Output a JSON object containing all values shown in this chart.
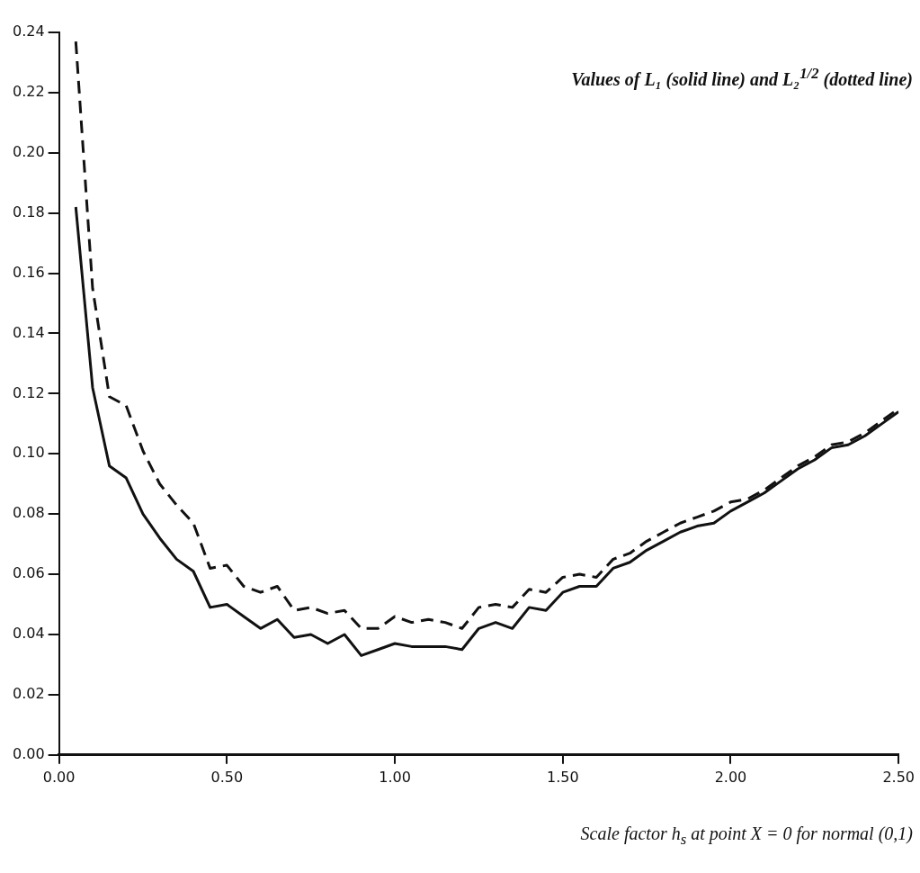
{
  "chart_data": {
    "type": "line",
    "title": "Values of L₁ (solid line) and L₂$^{1/2}$ (dotted line)",
    "xlabel": "Scale factor  h$_{s}$  at point X = 0 for normal (0,1)",
    "x": [
      0.05,
      0.1,
      0.15,
      0.2,
      0.25,
      0.3,
      0.35,
      0.4,
      0.45,
      0.5,
      0.55,
      0.6,
      0.65,
      0.7,
      0.75,
      0.8,
      0.85,
      0.9,
      0.95,
      1.0,
      1.05,
      1.1,
      1.15,
      1.2,
      1.25,
      1.3,
      1.35,
      1.4,
      1.45,
      1.5,
      1.55,
      1.6,
      1.65,
      1.7,
      1.75,
      1.8,
      1.85,
      1.9,
      1.95,
      2.0,
      2.05,
      2.1,
      2.15,
      2.2,
      2.25,
      2.3,
      2.35,
      2.4,
      2.45,
      2.5
    ],
    "series": [
      {
        "color": "#111111",
        "line_style": "solid",
        "values": [
          0.182,
          0.122,
          0.096,
          0.092,
          0.08,
          0.072,
          0.065,
          0.061,
          0.049,
          0.05,
          0.046,
          0.042,
          0.045,
          0.039,
          0.04,
          0.037,
          0.04,
          0.033,
          0.035,
          0.037,
          0.036,
          0.036,
          0.036,
          0.035,
          0.042,
          0.044,
          0.042,
          0.049,
          0.048,
          0.054,
          0.056,
          0.056,
          0.062,
          0.064,
          0.068,
          0.071,
          0.074,
          0.076,
          0.077,
          0.081,
          0.084,
          0.087,
          0.091,
          0.095,
          0.098,
          0.102,
          0.103,
          0.106,
          0.11,
          0.114
        ]
      },
      {
        "color": "#111111",
        "line_style": "dashed",
        "values": [
          0.237,
          0.155,
          0.119,
          0.116,
          0.101,
          0.09,
          0.083,
          0.077,
          0.062,
          0.063,
          0.056,
          0.054,
          0.056,
          0.048,
          0.049,
          0.047,
          0.048,
          0.042,
          0.042,
          0.046,
          0.044,
          0.045,
          0.044,
          0.042,
          0.049,
          0.05,
          0.049,
          0.055,
          0.054,
          0.059,
          0.06,
          0.059,
          0.065,
          0.067,
          0.071,
          0.074,
          0.077,
          0.079,
          0.081,
          0.084,
          0.085,
          0.088,
          0.092,
          0.096,
          0.099,
          0.103,
          0.104,
          0.107,
          0.111,
          0.115
        ]
      }
    ],
    "xlim": [
      0,
      2.5
    ],
    "ylim": [
      0,
      0.24
    ],
    "xticks": [
      {
        "value": 0,
        "label": "0.00"
      },
      {
        "value": 0.5,
        "label": "0.50"
      },
      {
        "value": 1,
        "label": "1.00"
      },
      {
        "value": 1.5,
        "label": "1.50"
      },
      {
        "value": 2,
        "label": "2.00"
      },
      {
        "value": 2.5,
        "label": "2.50"
      }
    ],
    "yticks": [
      {
        "value": 0,
        "label": "0.00"
      },
      {
        "value": 0.02,
        "label": "0.02"
      },
      {
        "value": 0.04,
        "label": "0.04"
      },
      {
        "value": 0.06,
        "label": "0.06"
      },
      {
        "value": 0.08,
        "label": "0.08"
      },
      {
        "value": 0.1,
        "label": "0.10"
      },
      {
        "value": 0.12,
        "label": "0.12"
      },
      {
        "value": 0.14,
        "label": "0.14"
      },
      {
        "value": 0.16,
        "label": "0.16"
      },
      {
        "value": 0.18,
        "label": "0.18"
      },
      {
        "value": 0.2,
        "label": "0.20"
      },
      {
        "value": 0.22,
        "label": "0.22"
      },
      {
        "value": 0.24,
        "label": "0.24"
      }
    ],
    "grid": false,
    "legend": false,
    "marker": "none"
  }
}
